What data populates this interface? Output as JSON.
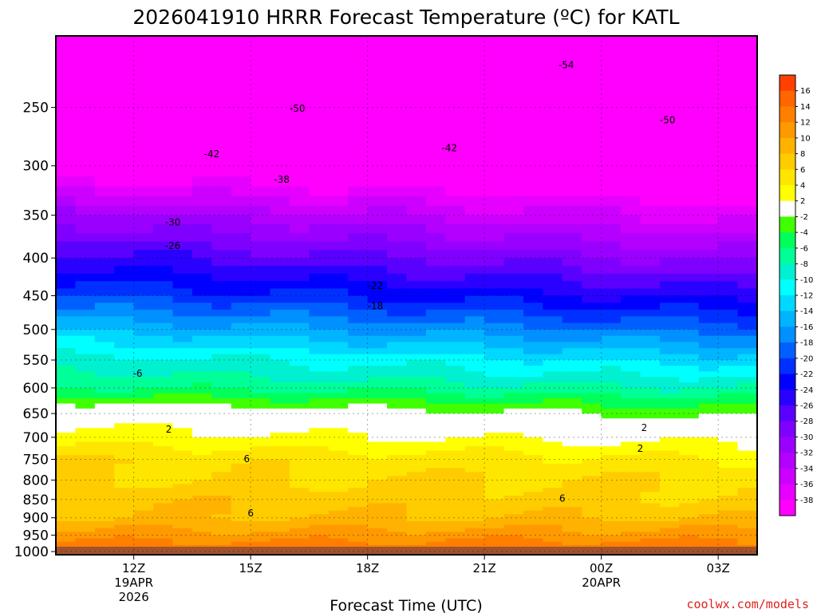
{
  "chart_data": {
    "type": "heatmap",
    "title": "2026041910 HRRR Forecast Temperature (ºC) for KATL",
    "xlabel": "Forecast Time (UTC)",
    "credit": "coolwx.com/models",
    "colors": {
      "credit": "#e0201c",
      "ground": "#a0522d",
      "frame": "#000000"
    },
    "x_hours": {
      "min": 10,
      "max": 28
    },
    "y_pressure": {
      "top_hpa": 200,
      "bottom_hpa": 1010,
      "ground_hpa": 985
    },
    "x_ticks": [
      {
        "hour": 12,
        "label": "12Z",
        "sub": [
          "19APR",
          "2026"
        ]
      },
      {
        "hour": 15,
        "label": "15Z",
        "sub": []
      },
      {
        "hour": 18,
        "label": "18Z",
        "sub": []
      },
      {
        "hour": 21,
        "label": "21Z",
        "sub": []
      },
      {
        "hour": 24,
        "label": "00Z",
        "sub": [
          "20APR"
        ]
      },
      {
        "hour": 27,
        "label": "03Z",
        "sub": []
      }
    ],
    "y_ticks": [
      250,
      300,
      350,
      400,
      450,
      500,
      550,
      600,
      650,
      700,
      750,
      800,
      850,
      900,
      950,
      1000
    ],
    "temperature_profile": {
      "description": "approximate temperature (C) at pressure levels for first and last forecast hours",
      "levels_hpa": [
        200,
        250,
        300,
        350,
        400,
        450,
        500,
        550,
        600,
        650,
        700,
        750,
        800,
        850,
        900,
        950,
        1000
      ],
      "t_start": [
        -58,
        -49,
        -40,
        -31,
        -25,
        -20,
        -14,
        -9,
        -6,
        1,
        3,
        6,
        6,
        8,
        8,
        11,
        14
      ],
      "t_end": [
        -58,
        -51,
        -44,
        -37,
        -31,
        -25,
        -19,
        -13,
        -8,
        -3,
        1,
        4,
        6,
        6,
        8,
        11,
        14
      ]
    },
    "colorbar": {
      "levels": [
        -40,
        -38,
        -36,
        -34,
        -32,
        -30,
        -28,
        -26,
        -24,
        -22,
        -20,
        -18,
        -16,
        -14,
        -12,
        -10,
        -8,
        -6,
        -4,
        -2,
        2,
        4,
        6,
        8,
        10,
        12,
        14,
        16
      ],
      "colors": [
        "#ff00ff",
        "#e600ff",
        "#cc00ff",
        "#b300ff",
        "#9900ff",
        "#7f00ff",
        "#5a00ff",
        "#2a00ff",
        "#0000ff",
        "#0030ff",
        "#0060ff",
        "#0090ff",
        "#00b4ff",
        "#00d8ff",
        "#00ffff",
        "#00f0d0",
        "#00ff96",
        "#00ff5a",
        "#40ff00",
        "#ffffff",
        "#ffff00",
        "#ffe600",
        "#ffcc00",
        "#ffb300",
        "#ff9900",
        "#ff7f00",
        "#ff6600",
        "#ff4000"
      ]
    },
    "contour_labels": [
      {
        "text": "-54",
        "hour": 23.1,
        "hpa": 219
      },
      {
        "text": "-50",
        "hour": 16.2,
        "hpa": 251
      },
      {
        "text": "-50",
        "hour": 25.7,
        "hpa": 260
      },
      {
        "text": "-42",
        "hour": 14.0,
        "hpa": 289
      },
      {
        "text": "-42",
        "hour": 20.1,
        "hpa": 284
      },
      {
        "text": "-38",
        "hour": 15.8,
        "hpa": 313
      },
      {
        "text": "-30",
        "hour": 13.0,
        "hpa": 358
      },
      {
        "text": "-26",
        "hour": 13.0,
        "hpa": 385
      },
      {
        "text": "-22",
        "hour": 18.2,
        "hpa": 436
      },
      {
        "text": "-18",
        "hour": 18.2,
        "hpa": 465
      },
      {
        "text": "-6",
        "hour": 12.1,
        "hpa": 574
      },
      {
        "text": "2",
        "hour": 12.9,
        "hpa": 683
      },
      {
        "text": "2",
        "hour": 25.1,
        "hpa": 680
      },
      {
        "text": "2",
        "hour": 25.0,
        "hpa": 725
      },
      {
        "text": "6",
        "hour": 14.9,
        "hpa": 749
      },
      {
        "text": "6",
        "hour": 23.0,
        "hpa": 847
      },
      {
        "text": "6",
        "hour": 15.0,
        "hpa": 887
      }
    ]
  }
}
